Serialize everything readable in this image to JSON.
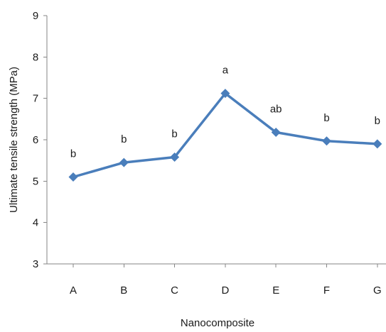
{
  "chart_data": {
    "type": "line",
    "title": "",
    "xlabel": "Nanocomposite",
    "ylabel": "Ultimate tensile strength (MPa)",
    "ylim": [
      3,
      9
    ],
    "yticks": [
      3,
      4,
      5,
      6,
      7,
      8,
      9
    ],
    "ytick_labels": [
      "3",
      "4",
      "5",
      "6",
      "7",
      "8",
      "9"
    ],
    "categories": [
      "A",
      "B",
      "C",
      "D",
      "E",
      "F",
      "G"
    ],
    "series": [
      {
        "values": [
          5.1,
          5.45,
          5.58,
          7.12,
          6.18,
          5.97,
          5.9
        ],
        "data_labels": [
          "b",
          "b",
          "b",
          "a",
          "ab",
          "b",
          "b"
        ],
        "color": "#4a7ebb",
        "marker": "diamond"
      }
    ],
    "grid": false,
    "legend": "none"
  }
}
